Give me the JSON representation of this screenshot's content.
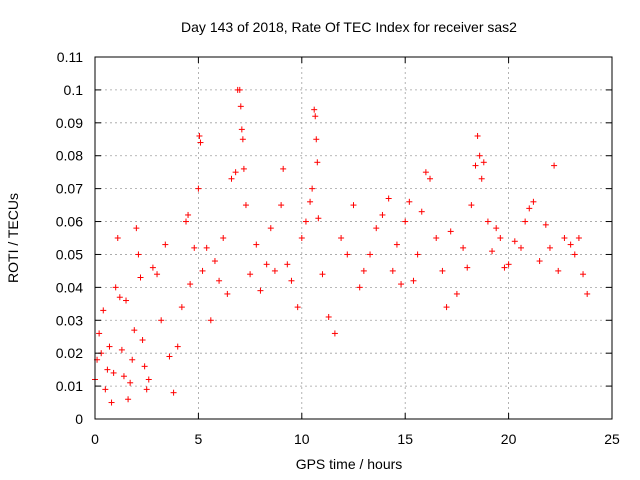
{
  "chart_data": {
    "type": "scatter",
    "title": "Day 143 of 2018, Rate Of TEC Index for receiver sas2",
    "xlabel": "GPS time / hours",
    "ylabel": "ROTI / TECUs",
    "xlim": [
      0,
      25
    ],
    "ylim": [
      0,
      0.11
    ],
    "xticks": [
      0,
      5,
      10,
      15,
      20,
      25
    ],
    "xtick_labels": [
      "0",
      "5",
      "10",
      "15",
      "20",
      "25"
    ],
    "yticks": [
      0,
      0.01,
      0.02,
      0.03,
      0.04,
      0.05,
      0.06,
      0.07,
      0.08,
      0.09,
      0.1,
      0.11
    ],
    "ytick_labels": [
      "0",
      "0.01",
      "0.02",
      "0.03",
      "0.04",
      "0.05",
      "0.06",
      "0.07",
      "0.08",
      "0.09",
      "0.1",
      "0.11"
    ],
    "grid": true,
    "marker": "+",
    "colors": {
      "series": "#ff0000",
      "grid": "#a0a0a0",
      "axis": "#000000"
    },
    "series": [
      {
        "points": [
          [
            0.0,
            0.012
          ],
          [
            0.1,
            0.018
          ],
          [
            0.2,
            0.026
          ],
          [
            0.3,
            0.02
          ],
          [
            0.4,
            0.033
          ],
          [
            0.5,
            0.009
          ],
          [
            0.6,
            0.015
          ],
          [
            0.7,
            0.022
          ],
          [
            0.8,
            0.005
          ],
          [
            0.9,
            0.014
          ],
          [
            1.0,
            0.04
          ],
          [
            1.1,
            0.055
          ],
          [
            1.2,
            0.037
          ],
          [
            1.3,
            0.021
          ],
          [
            1.4,
            0.013
          ],
          [
            1.5,
            0.036
          ],
          [
            1.6,
            0.006
          ],
          [
            1.7,
            0.011
          ],
          [
            1.8,
            0.018
          ],
          [
            1.9,
            0.027
          ],
          [
            2.0,
            0.058
          ],
          [
            2.1,
            0.05
          ],
          [
            2.2,
            0.043
          ],
          [
            2.3,
            0.024
          ],
          [
            2.4,
            0.016
          ],
          [
            2.5,
            0.009
          ],
          [
            2.6,
            0.012
          ],
          [
            2.8,
            0.046
          ],
          [
            3.0,
            0.044
          ],
          [
            3.2,
            0.03
          ],
          [
            3.4,
            0.053
          ],
          [
            3.6,
            0.019
          ],
          [
            3.8,
            0.008
          ],
          [
            4.0,
            0.022
          ],
          [
            4.2,
            0.034
          ],
          [
            4.4,
            0.06
          ],
          [
            4.5,
            0.062
          ],
          [
            4.6,
            0.041
          ],
          [
            4.8,
            0.052
          ],
          [
            5.0,
            0.07
          ],
          [
            5.05,
            0.086
          ],
          [
            5.1,
            0.084
          ],
          [
            5.2,
            0.045
          ],
          [
            5.4,
            0.052
          ],
          [
            5.6,
            0.03
          ],
          [
            5.8,
            0.048
          ],
          [
            6.0,
            0.042
          ],
          [
            6.2,
            0.055
          ],
          [
            6.4,
            0.038
          ],
          [
            6.6,
            0.073
          ],
          [
            6.8,
            0.075
          ],
          [
            6.9,
            0.1
          ],
          [
            7.0,
            0.1
          ],
          [
            7.05,
            0.095
          ],
          [
            7.1,
            0.088
          ],
          [
            7.15,
            0.085
          ],
          [
            7.2,
            0.076
          ],
          [
            7.3,
            0.065
          ],
          [
            7.5,
            0.044
          ],
          [
            7.8,
            0.053
          ],
          [
            8.0,
            0.039
          ],
          [
            8.3,
            0.047
          ],
          [
            8.5,
            0.058
          ],
          [
            8.7,
            0.045
          ],
          [
            9.0,
            0.065
          ],
          [
            9.1,
            0.076
          ],
          [
            9.3,
            0.047
          ],
          [
            9.5,
            0.042
          ],
          [
            9.8,
            0.034
          ],
          [
            10.0,
            0.055
          ],
          [
            10.2,
            0.06
          ],
          [
            10.4,
            0.066
          ],
          [
            10.5,
            0.07
          ],
          [
            10.6,
            0.094
          ],
          [
            10.65,
            0.092
          ],
          [
            10.7,
            0.085
          ],
          [
            10.75,
            0.078
          ],
          [
            10.8,
            0.061
          ],
          [
            11.0,
            0.044
          ],
          [
            11.3,
            0.031
          ],
          [
            11.6,
            0.026
          ],
          [
            11.9,
            0.055
          ],
          [
            12.2,
            0.05
          ],
          [
            12.5,
            0.065
          ],
          [
            12.8,
            0.04
          ],
          [
            13.0,
            0.045
          ],
          [
            13.3,
            0.05
          ],
          [
            13.6,
            0.058
          ],
          [
            13.9,
            0.062
          ],
          [
            14.2,
            0.067
          ],
          [
            14.4,
            0.045
          ],
          [
            14.6,
            0.053
          ],
          [
            14.8,
            0.041
          ],
          [
            15.0,
            0.06
          ],
          [
            15.2,
            0.066
          ],
          [
            15.4,
            0.042
          ],
          [
            15.6,
            0.05
          ],
          [
            15.8,
            0.063
          ],
          [
            16.0,
            0.075
          ],
          [
            16.2,
            0.073
          ],
          [
            16.5,
            0.055
          ],
          [
            16.8,
            0.045
          ],
          [
            17.0,
            0.034
          ],
          [
            17.2,
            0.057
          ],
          [
            17.5,
            0.038
          ],
          [
            17.8,
            0.052
          ],
          [
            18.0,
            0.046
          ],
          [
            18.2,
            0.065
          ],
          [
            18.4,
            0.077
          ],
          [
            18.5,
            0.086
          ],
          [
            18.6,
            0.08
          ],
          [
            18.7,
            0.073
          ],
          [
            18.8,
            0.078
          ],
          [
            19.0,
            0.06
          ],
          [
            19.2,
            0.051
          ],
          [
            19.4,
            0.058
          ],
          [
            19.6,
            0.055
          ],
          [
            19.8,
            0.046
          ],
          [
            20.0,
            0.047
          ],
          [
            20.3,
            0.054
          ],
          [
            20.6,
            0.052
          ],
          [
            20.8,
            0.06
          ],
          [
            21.0,
            0.064
          ],
          [
            21.2,
            0.066
          ],
          [
            21.5,
            0.048
          ],
          [
            21.8,
            0.059
          ],
          [
            22.0,
            0.052
          ],
          [
            22.2,
            0.077
          ],
          [
            22.4,
            0.045
          ],
          [
            22.7,
            0.055
          ],
          [
            23.0,
            0.053
          ],
          [
            23.2,
            0.05
          ],
          [
            23.4,
            0.055
          ],
          [
            23.6,
            0.044
          ],
          [
            23.8,
            0.038
          ]
        ]
      }
    ]
  }
}
